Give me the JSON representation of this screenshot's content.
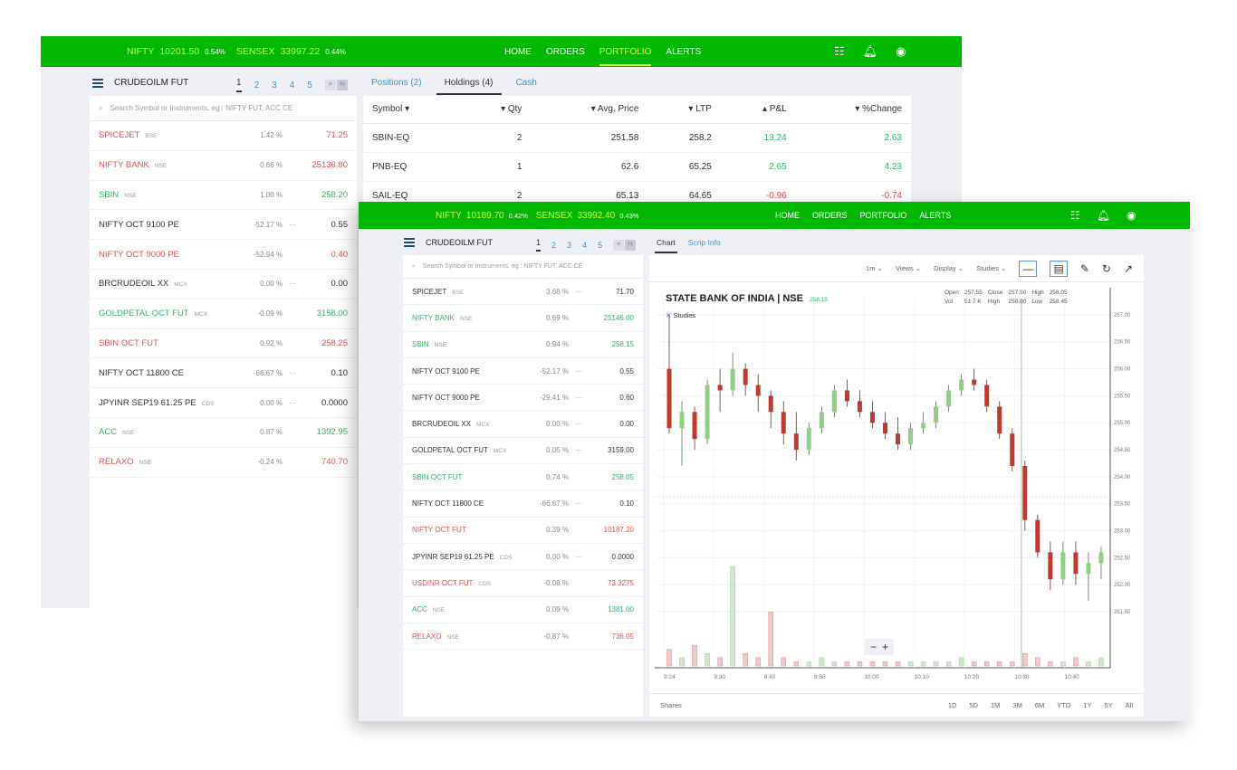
{
  "back": {
    "ticker": {
      "nifty_label": "NIFTY",
      "nifty_value": "10201.50",
      "nifty_change": "0.54%",
      "sensex_label": "SENSEX",
      "sensex_value": "33997.22",
      "sensex_change": "0.44%"
    },
    "nav": [
      "HOME",
      "ORDERS",
      "PORTFOLIO",
      "ALERTS"
    ],
    "watchlist_title": "CRUDEOILM FUT",
    "pages": [
      "1",
      "2",
      "3",
      "4",
      "5"
    ],
    "search_placeholder": "Search Symbol or Instruments, eg : NIFTY FUT, ACC CE",
    "watchlist": [
      {
        "name": "SPICEJET",
        "exchange": "BSE",
        "change": "1.42 %",
        "dots": "",
        "price": "71.25",
        "color": "red",
        "name_color": "red"
      },
      {
        "name": "NIFTY BANK",
        "exchange": "NSE",
        "change": "0.66 %",
        "dots": "",
        "price": "25136.80",
        "color": "red",
        "name_color": "red"
      },
      {
        "name": "SBIN",
        "exchange": "NSE",
        "change": "1.00 %",
        "dots": "",
        "price": "258.20",
        "color": "green",
        "name_color": "green"
      },
      {
        "name": "NIFTY OCT 9100 PE",
        "exchange": "",
        "change": "-52.17 %",
        "dots": "···",
        "price": "0.55",
        "color": "dark",
        "name_color": "dark"
      },
      {
        "name": "NIFTY OCT 9000 PE",
        "exchange": "",
        "change": "-52.94 %",
        "dots": "",
        "price": "0.40",
        "color": "red",
        "name_color": "red"
      },
      {
        "name": "BRCRUDEOIL XX",
        "exchange": "MCX",
        "change": "0.00 %",
        "dots": "···",
        "price": "0.00",
        "color": "dark",
        "name_color": "dark"
      },
      {
        "name": "GOLDPETAL OCT FUT",
        "exchange": "MCX",
        "change": "-0.09 %",
        "dots": "",
        "price": "3158.00",
        "color": "green",
        "name_color": "green"
      },
      {
        "name": "SBIN OCT FUT",
        "exchange": "",
        "change": "0.92 %",
        "dots": "",
        "price": "258.25",
        "color": "red",
        "name_color": "red"
      },
      {
        "name": "NIFTY OCT 11800 CE",
        "exchange": "",
        "change": "-66.67 %",
        "dots": "···",
        "price": "0.10",
        "color": "dark",
        "name_color": "dark"
      },
      {
        "name": "JPYINR SEP19 61.25 PE",
        "exchange": "CDS",
        "change": "0.00 %",
        "dots": "···",
        "price": "0.0000",
        "color": "dark",
        "name_color": "dark"
      },
      {
        "name": "ACC",
        "exchange": "NSE",
        "change": "0.87 %",
        "dots": "",
        "price": "1392.95",
        "color": "green",
        "name_color": "green"
      },
      {
        "name": "RELAXO",
        "exchange": "NSE",
        "change": "-0.24 %",
        "dots": "",
        "price": "740.70",
        "color": "red",
        "name_color": "red"
      }
    ],
    "tabs": [
      "Positions (2)",
      "Holdings (4)",
      "Cash"
    ],
    "holdings_headers": [
      "Symbol",
      "Qty",
      "Avg. Price",
      "LTP",
      "P&L",
      "%Change"
    ],
    "holdings": [
      {
        "symbol": "SBIN-EQ",
        "qty": "2",
        "avg": "251.58",
        "ltp": "258.2",
        "pnl": "13.24",
        "chg": "2.63",
        "color": "green"
      },
      {
        "symbol": "PNB-EQ",
        "qty": "1",
        "avg": "62.6",
        "ltp": "65.25",
        "pnl": "2.65",
        "chg": "4.23",
        "color": "green"
      },
      {
        "symbol": "SAIL-EQ",
        "qty": "2",
        "avg": "65.13",
        "ltp": "64.65",
        "pnl": "-0.96",
        "chg": "-0.74",
        "color": "red"
      }
    ]
  },
  "front": {
    "ticker": {
      "nifty_label": "NIFTY",
      "nifty_value": "10189.70",
      "nifty_change": "0.42%",
      "sensex_label": "SENSEX",
      "sensex_value": "33992.40",
      "sensex_change": "0.43%"
    },
    "nav": [
      "HOME",
      "ORDERS",
      "PORTFOLIO",
      "ALERTS"
    ],
    "watchlist_title": "CRUDEOILM FUT",
    "pages": [
      "1",
      "2",
      "3",
      "4",
      "5"
    ],
    "search_placeholder": "Search Symbol or Instruments, eg : NIFTY FUT, ACC CE",
    "watchlist": [
      {
        "name": "SPICEJET",
        "exchange": "BSE",
        "change": "3.68 %",
        "dots": "···",
        "price": "71.70",
        "color": "dark",
        "name_color": "dark"
      },
      {
        "name": "NIFTY BANK",
        "exchange": "NSE",
        "change": "0.69 %",
        "dots": "",
        "price": "25146.00",
        "color": "green",
        "name_color": "green"
      },
      {
        "name": "SBIN",
        "exchange": "NSE",
        "change": "0.94 %",
        "dots": "",
        "price": "258.15",
        "color": "green",
        "name_color": "green"
      },
      {
        "name": "NIFTY OCT 9100 PE",
        "exchange": "",
        "change": "-52.17 %",
        "dots": "···",
        "price": "0.55",
        "color": "dark",
        "name_color": "dark"
      },
      {
        "name": "NIFTY OCT 9000 PE",
        "exchange": "",
        "change": "-29.41 %",
        "dots": "···",
        "price": "0.60",
        "color": "dark",
        "name_color": "dark"
      },
      {
        "name": "BRCRUDEOIL XX",
        "exchange": "MCX",
        "change": "0.00 %",
        "dots": "···",
        "price": "0.00",
        "color": "dark",
        "name_color": "dark"
      },
      {
        "name": "GOLDPETAL OCT FUT",
        "exchange": "MCX",
        "change": "0.05 %",
        "dots": "···",
        "price": "3159.00",
        "color": "dark",
        "name_color": "dark"
      },
      {
        "name": "SBIN OCT FUT",
        "exchange": "",
        "change": "0.74 %",
        "dots": "",
        "price": "258.05",
        "color": "green",
        "name_color": "green"
      },
      {
        "name": "NIFTY OCT 11800 CE",
        "exchange": "",
        "change": "-66.67 %",
        "dots": "···",
        "price": "0.10",
        "color": "dark",
        "name_color": "dark"
      },
      {
        "name": "NIFTY OCT FUT",
        "exchange": "",
        "change": "0.39 %",
        "dots": "",
        "price": "10187.20",
        "color": "red",
        "name_color": "red"
      },
      {
        "name": "JPYINR SEP19 61.25 PE",
        "exchange": "CDS",
        "change": "0.00 %",
        "dots": "···",
        "price": "0.0000",
        "color": "dark",
        "name_color": "dark"
      },
      {
        "name": "USDINR OCT FUT",
        "exchange": "CDS",
        "change": "-0.08 %",
        "dots": "",
        "price": "73.3275",
        "color": "red",
        "name_color": "red"
      },
      {
        "name": "ACC",
        "exchange": "NSE",
        "change": "0.09 %",
        "dots": "",
        "price": "1381.00",
        "color": "green",
        "name_color": "green"
      },
      {
        "name": "RELAXO",
        "exchange": "NSE",
        "change": "-0.87 %",
        "dots": "",
        "price": "736.05",
        "color": "red",
        "name_color": "red"
      }
    ],
    "tabs": [
      "Chart",
      "Scrip Info"
    ],
    "chart_toolbar": [
      "1m",
      "Views",
      "Display",
      "Studies"
    ],
    "chart_title": "STATE BANK OF INDIA | NSE",
    "chart_price_tag": "258.15",
    "studies_label": "Studies",
    "ohlc": {
      "open_label": "Open",
      "open": "257.55",
      "close_label": "Close",
      "close": "257.50",
      "high_label": "High",
      "high": "258.05",
      "vol_label": "Vol",
      "vol": "51.7 K",
      "high2_label": "High",
      "high2": "258.00",
      "low_label": "Low",
      "low": "258.45"
    },
    "zoom_minus": "−",
    "zoom_plus": "+",
    "bottom_label": "Shares",
    "ranges": [
      "1D",
      "5D",
      "1M",
      "3M",
      "6M",
      "YTD",
      "1Y",
      "5Y",
      "All"
    ],
    "colors": {
      "up": "#8ed081",
      "down": "#c0392b",
      "brand": "#00b800"
    }
  },
  "chart_data": {
    "type": "candlestick",
    "title": "STATE BANK OF INDIA | NSE",
    "x_tick_labels": [
      "9:24",
      "9:30",
      "9:40",
      "9:50",
      "10:00",
      "10:10",
      "10:20",
      "10:30",
      "10:40"
    ],
    "y_tick_labels": [
      "257.00",
      "256.50",
      "256.00",
      "255.50",
      "255.00",
      "254.50",
      "254.00",
      "253.50",
      "253.00",
      "252.50",
      "252.00",
      "251.50"
    ],
    "ylim": [
      251.3,
      257.3
    ],
    "series": [
      {
        "values": [
          [
            256.0,
            257.0,
            254.8,
            254.9
          ],
          [
            254.9,
            255.4,
            254.2,
            255.2
          ],
          [
            255.2,
            255.3,
            254.5,
            254.7
          ],
          [
            254.7,
            255.8,
            254.6,
            255.7
          ],
          [
            255.7,
            256.0,
            255.2,
            255.6
          ],
          [
            255.6,
            256.3,
            255.5,
            256.0
          ],
          [
            256.0,
            256.1,
            255.5,
            255.7
          ],
          [
            255.7,
            255.9,
            255.2,
            255.5
          ],
          [
            255.5,
            255.6,
            254.9,
            255.2
          ],
          [
            255.2,
            255.4,
            254.6,
            254.8
          ],
          [
            254.8,
            255.2,
            254.3,
            254.5
          ],
          [
            254.5,
            255.0,
            254.4,
            254.9
          ],
          [
            254.9,
            255.3,
            254.8,
            255.2
          ],
          [
            255.2,
            255.7,
            255.1,
            255.6
          ],
          [
            255.6,
            255.8,
            255.3,
            255.4
          ],
          [
            255.4,
            255.6,
            255.1,
            255.2
          ],
          [
            255.2,
            255.4,
            254.9,
            255.0
          ],
          [
            255.0,
            255.2,
            254.7,
            254.8
          ],
          [
            254.8,
            255.1,
            254.5,
            254.6
          ],
          [
            254.6,
            255.0,
            254.5,
            254.9
          ],
          [
            254.9,
            255.2,
            254.8,
            255.0
          ],
          [
            255.0,
            255.4,
            254.9,
            255.3
          ],
          [
            255.3,
            255.7,
            255.2,
            255.6
          ],
          [
            255.6,
            255.9,
            255.5,
            255.8
          ],
          [
            255.8,
            256.0,
            255.6,
            255.7
          ],
          [
            255.7,
            255.8,
            255.2,
            255.3
          ],
          [
            255.3,
            255.4,
            254.7,
            254.8
          ],
          [
            254.8,
            254.9,
            254.1,
            254.2
          ],
          [
            254.2,
            254.3,
            253.0,
            253.2
          ],
          [
            253.2,
            253.3,
            252.5,
            252.6
          ],
          [
            252.6,
            252.8,
            251.9,
            252.1
          ],
          [
            252.1,
            252.8,
            252.0,
            252.6
          ],
          [
            252.6,
            252.8,
            252.0,
            252.2
          ],
          [
            252.2,
            252.6,
            251.7,
            252.4
          ],
          [
            252.4,
            252.7,
            252.1,
            252.6
          ]
        ]
      }
    ],
    "volume": [
      4,
      2,
      5,
      3,
      2,
      24,
      3,
      2,
      13,
      2,
      1,
      1,
      2,
      1,
      1,
      1,
      1,
      1,
      1,
      1,
      1,
      1,
      1,
      2,
      1,
      1,
      1,
      1,
      3,
      2,
      1,
      1,
      2,
      1,
      2
    ],
    "grid": true
  }
}
